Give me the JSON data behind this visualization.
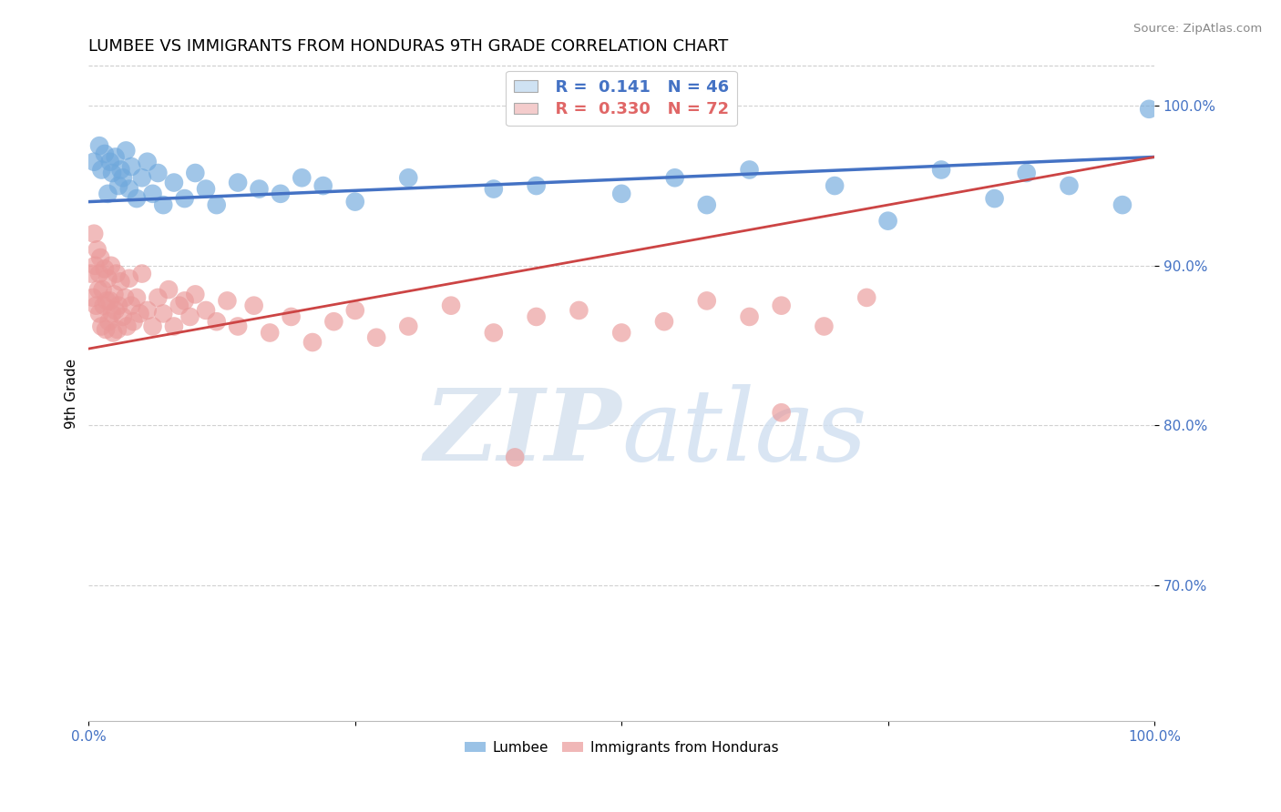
{
  "title": "LUMBEE VS IMMIGRANTS FROM HONDURAS 9TH GRADE CORRELATION CHART",
  "source": "Source: ZipAtlas.com",
  "ylabel": "9th Grade",
  "xlim": [
    0.0,
    1.0
  ],
  "ylim": [
    0.615,
    1.025
  ],
  "xtick_positions": [
    0.0,
    0.25,
    0.5,
    0.75,
    1.0
  ],
  "xtick_labels": [
    "0.0%",
    "",
    "",
    "",
    "100.0%"
  ],
  "ytick_positions": [
    0.7,
    0.8,
    0.9,
    1.0
  ],
  "ytick_labels": [
    "70.0%",
    "80.0%",
    "90.0%",
    "100.0%"
  ],
  "legend_labels": [
    "Lumbee",
    "Immigrants from Honduras"
  ],
  "lumbee_color": "#6fa8dc",
  "honduras_color": "#ea9999",
  "lumbee_R": 0.141,
  "lumbee_N": 46,
  "honduras_R": 0.33,
  "honduras_N": 72,
  "lumbee_trend": [
    0.94,
    0.968
  ],
  "honduras_trend": [
    0.848,
    0.968
  ],
  "background_color": "#ffffff",
  "grid_color": "#cccccc",
  "title_fontsize": 13,
  "tick_label_color": "#4472c4",
  "legend_box_color_lumbee": "#cfe2f3",
  "legend_box_color_honduras": "#f4cccc",
  "legend_R_color_lumbee": "#4472c4",
  "legend_R_color_honduras": "#e06666",
  "trendline_color_lumbee": "#4472c4",
  "trendline_color_honduras": "#cc4444",
  "lumbee_scatter_x": [
    0.005,
    0.01,
    0.012,
    0.015,
    0.018,
    0.02,
    0.022,
    0.025,
    0.028,
    0.03,
    0.032,
    0.035,
    0.038,
    0.04,
    0.045,
    0.05,
    0.055,
    0.06,
    0.065,
    0.07,
    0.08,
    0.09,
    0.1,
    0.11,
    0.12,
    0.14,
    0.16,
    0.18,
    0.2,
    0.22,
    0.25,
    0.3,
    0.38,
    0.42,
    0.5,
    0.55,
    0.58,
    0.62,
    0.7,
    0.75,
    0.8,
    0.85,
    0.88,
    0.92,
    0.97,
    0.995
  ],
  "lumbee_scatter_y": [
    0.965,
    0.975,
    0.96,
    0.97,
    0.945,
    0.965,
    0.958,
    0.968,
    0.95,
    0.96,
    0.955,
    0.972,
    0.948,
    0.962,
    0.942,
    0.955,
    0.965,
    0.945,
    0.958,
    0.938,
    0.952,
    0.942,
    0.958,
    0.948,
    0.938,
    0.952,
    0.948,
    0.945,
    0.955,
    0.95,
    0.94,
    0.955,
    0.948,
    0.95,
    0.945,
    0.955,
    0.938,
    0.96,
    0.95,
    0.928,
    0.96,
    0.942,
    0.958,
    0.95,
    0.938,
    0.998
  ],
  "honduras_scatter_x": [
    0.002,
    0.004,
    0.005,
    0.006,
    0.007,
    0.008,
    0.009,
    0.01,
    0.01,
    0.011,
    0.012,
    0.013,
    0.014,
    0.015,
    0.016,
    0.017,
    0.018,
    0.019,
    0.02,
    0.021,
    0.022,
    0.023,
    0.024,
    0.025,
    0.026,
    0.027,
    0.028,
    0.03,
    0.032,
    0.034,
    0.036,
    0.038,
    0.04,
    0.042,
    0.045,
    0.048,
    0.05,
    0.055,
    0.06,
    0.065,
    0.07,
    0.075,
    0.08,
    0.085,
    0.09,
    0.095,
    0.1,
    0.11,
    0.12,
    0.13,
    0.14,
    0.155,
    0.17,
    0.19,
    0.21,
    0.23,
    0.25,
    0.27,
    0.3,
    0.34,
    0.38,
    0.42,
    0.46,
    0.5,
    0.54,
    0.58,
    0.62,
    0.65,
    0.69,
    0.73,
    0.65,
    0.4
  ],
  "honduras_scatter_y": [
    0.895,
    0.88,
    0.92,
    0.9,
    0.875,
    0.91,
    0.885,
    0.895,
    0.87,
    0.905,
    0.862,
    0.885,
    0.875,
    0.898,
    0.86,
    0.878,
    0.892,
    0.865,
    0.878,
    0.9,
    0.87,
    0.858,
    0.882,
    0.872,
    0.895,
    0.86,
    0.875,
    0.89,
    0.868,
    0.88,
    0.862,
    0.892,
    0.875,
    0.865,
    0.88,
    0.87,
    0.895,
    0.872,
    0.862,
    0.88,
    0.87,
    0.885,
    0.862,
    0.875,
    0.878,
    0.868,
    0.882,
    0.872,
    0.865,
    0.878,
    0.862,
    0.875,
    0.858,
    0.868,
    0.852,
    0.865,
    0.872,
    0.855,
    0.862,
    0.875,
    0.858,
    0.868,
    0.872,
    0.858,
    0.865,
    0.878,
    0.868,
    0.875,
    0.862,
    0.88,
    0.808,
    0.78
  ]
}
